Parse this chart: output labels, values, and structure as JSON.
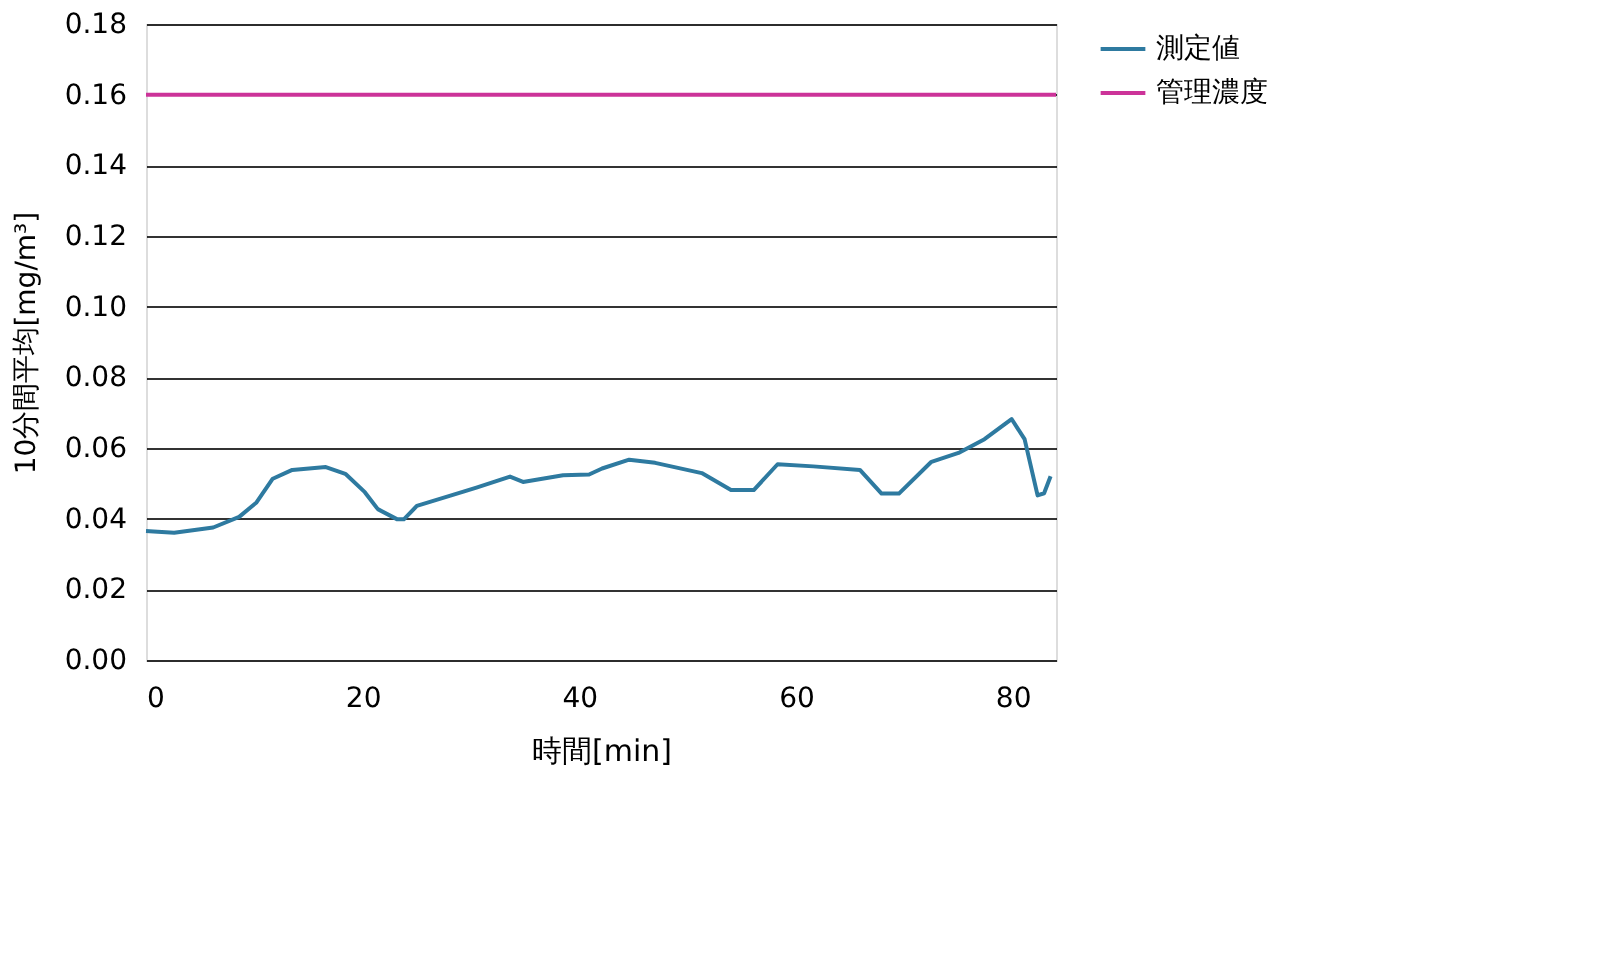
{
  "chart_data": {
    "type": "line",
    "xlabel": "時間[min]",
    "ylabel": "10分間平均[mg/m³]",
    "xlim": [
      0,
      84
    ],
    "xticks": [
      0,
      20,
      40,
      60,
      80
    ],
    "ylim": [
      0,
      0.18
    ],
    "yticks": [
      {
        "value": 0,
        "label": "0.00"
      },
      {
        "value": 0.02,
        "label": "0.02"
      },
      {
        "value": 0.04,
        "label": "0.04"
      },
      {
        "value": 0.06,
        "label": "0.06"
      },
      {
        "value": 0.08,
        "label": "0.08"
      },
      {
        "value": 0.1,
        "label": "0.10"
      },
      {
        "value": 0.12,
        "label": "0.12"
      },
      {
        "value": 0.14,
        "label": "0.14"
      },
      {
        "value": 0.16,
        "label": "0.16"
      },
      {
        "value": 0.18,
        "label": "0.18"
      }
    ],
    "grid": "y",
    "legend": "right",
    "marker": "none",
    "line_style": "solid",
    "series": [
      {
        "name": "測定値",
        "color": "#2e7aa0",
        "x": [
          0,
          0.7,
          2.6,
          6.2,
          8.6,
          10.2,
          11.7,
          13.5,
          16.6,
          18.4,
          20.2,
          21.4,
          23.2,
          23.8,
          25.0,
          28.1,
          30.5,
          33.6,
          34.8,
          38.5,
          40.9,
          42.1,
          44.6,
          47.0,
          51.3,
          54.0,
          56.1,
          58.3,
          61.6,
          65.9,
          67.9,
          69.5,
          72.5,
          75.0,
          77.4,
          79.9,
          81.1,
          82.3,
          82.9,
          83.5
        ],
        "values": [
          0.0365,
          0.0364,
          0.036,
          0.0375,
          0.0405,
          0.0446,
          0.0513,
          0.0538,
          0.0546,
          0.0527,
          0.0475,
          0.0427,
          0.0398,
          0.0398,
          0.0436,
          0.0465,
          0.0488,
          0.0519,
          0.0504,
          0.0523,
          0.0525,
          0.0542,
          0.0567,
          0.0558,
          0.0529,
          0.0481,
          0.0481,
          0.0554,
          0.0548,
          0.0538,
          0.0471,
          0.0471,
          0.0561,
          0.0586,
          0.0625,
          0.0682,
          0.0625,
          0.0466,
          0.0472,
          0.052
        ]
      },
      {
        "name": "管理濃度",
        "color": "#cc3399",
        "x": [
          0,
          84
        ],
        "values": [
          0.16,
          0.16
        ]
      }
    ]
  }
}
